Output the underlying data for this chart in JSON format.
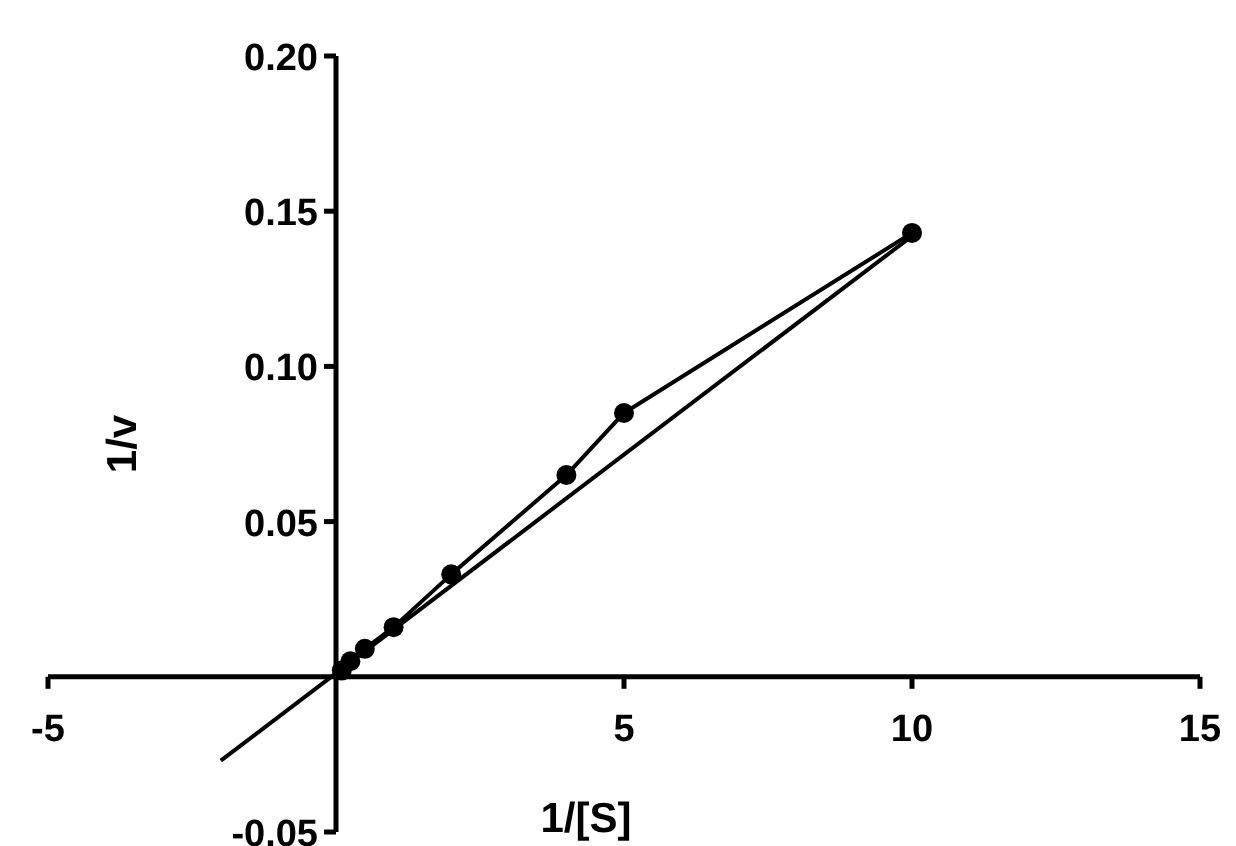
{
  "chart_data": {
    "type": "line",
    "xlabel": "1/[S]",
    "ylabel": "1/v",
    "xlim": [
      -5,
      15
    ],
    "ylim": [
      -0.05,
      0.2
    ],
    "xticks": [
      -5,
      5,
      10,
      15
    ],
    "yticks": [
      {
        "value": -0.05,
        "label": "-0.05"
      },
      {
        "value": 0.05,
        "label": "0.05"
      },
      {
        "value": 0.1,
        "label": "0.10"
      },
      {
        "value": 0.15,
        "label": "0.15"
      },
      {
        "value": 0.2,
        "label": "0.20"
      }
    ],
    "grid": false,
    "marker": "circle",
    "series": [
      {
        "color": "#000000",
        "x": [
          0.1,
          0.25,
          0.5,
          1,
          2,
          4,
          5,
          10
        ],
        "values": [
          0.002,
          0.005,
          0.009,
          0.016,
          0.033,
          0.065,
          0.085,
          0.143
        ]
      },
      {
        "color": "#000000",
        "marker": "none",
        "x": [
          -2,
          10
        ],
        "values": [
          -0.027,
          0.142
        ]
      }
    ]
  }
}
